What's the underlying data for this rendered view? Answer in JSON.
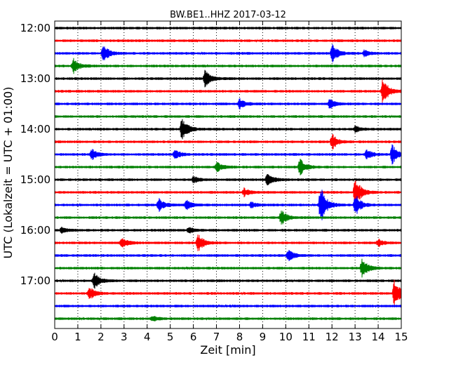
{
  "chart_data": {
    "type": "seismogram",
    "title": "BW.BE1..HHZ 2017-03-12",
    "xlabel": "Zeit  [min]",
    "ylabel": "UTC (Lokalzeit = UTC + 01:00)",
    "xlim": [
      0,
      15
    ],
    "x_ticks": [
      "0",
      "1",
      "2",
      "3",
      "4",
      "5",
      "6",
      "7",
      "8",
      "9",
      "10",
      "11",
      "12",
      "13",
      "14",
      "15"
    ],
    "y_ticks": [
      "12:00",
      "13:00",
      "14:00",
      "15:00",
      "16:00",
      "17:00"
    ],
    "grid": "vertical dotted lines at each minute",
    "colors": [
      "#000000",
      "#ff0000",
      "#0000ff",
      "#008000"
    ],
    "trace_interval_min": 15,
    "traces": [
      {
        "start": "12:00",
        "events": []
      },
      {
        "start": "12:15",
        "events": []
      },
      {
        "start": "12:30",
        "events": [
          {
            "t": 2.1,
            "amp": 0.9
          },
          {
            "t": 12.0,
            "amp": 1.0
          },
          {
            "t": 13.4,
            "amp": 0.35
          }
        ]
      },
      {
        "start": "12:45",
        "events": [
          {
            "t": 0.8,
            "amp": 0.8
          }
        ]
      },
      {
        "start": "13:00",
        "events": [
          {
            "t": 6.5,
            "amp": 0.9
          }
        ]
      },
      {
        "start": "13:15",
        "events": [
          {
            "t": 14.2,
            "amp": 1.5
          }
        ]
      },
      {
        "start": "13:30",
        "events": [
          {
            "t": 8.0,
            "amp": 0.5
          },
          {
            "t": 11.9,
            "amp": 0.5
          }
        ]
      },
      {
        "start": "13:45",
        "events": []
      },
      {
        "start": "14:00",
        "events": [
          {
            "t": 5.5,
            "amp": 1.3
          },
          {
            "t": 13.0,
            "amp": 0.3
          }
        ]
      },
      {
        "start": "14:15",
        "events": [
          {
            "t": 12.0,
            "amp": 0.8
          }
        ]
      },
      {
        "start": "14:30",
        "events": [
          {
            "t": 1.6,
            "amp": 0.6
          },
          {
            "t": 5.2,
            "amp": 0.5
          },
          {
            "t": 13.5,
            "amp": 0.5
          },
          {
            "t": 14.6,
            "amp": 1.0
          }
        ]
      },
      {
        "start": "14:45",
        "events": [
          {
            "t": 7.0,
            "amp": 0.6
          },
          {
            "t": 10.6,
            "amp": 0.9
          }
        ]
      },
      {
        "start": "15:00",
        "events": [
          {
            "t": 6.0,
            "amp": 0.35
          },
          {
            "t": 9.2,
            "amp": 0.8
          }
        ]
      },
      {
        "start": "15:15",
        "events": [
          {
            "t": 8.2,
            "amp": 0.4
          },
          {
            "t": 13.0,
            "amp": 1.6
          }
        ]
      },
      {
        "start": "15:30",
        "events": [
          {
            "t": 4.5,
            "amp": 0.7
          },
          {
            "t": 5.7,
            "amp": 0.5
          },
          {
            "t": 8.5,
            "amp": 0.3
          },
          {
            "t": 11.5,
            "amp": 2.2
          },
          {
            "t": 13.0,
            "amp": 1.2
          }
        ]
      },
      {
        "start": "15:45",
        "events": [
          {
            "t": 9.8,
            "amp": 0.8
          }
        ]
      },
      {
        "start": "16:00",
        "events": [
          {
            "t": 0.3,
            "amp": 0.3
          },
          {
            "t": 5.8,
            "amp": 0.3
          }
        ]
      },
      {
        "start": "16:15",
        "events": [
          {
            "t": 2.9,
            "amp": 0.6
          },
          {
            "t": 6.2,
            "amp": 1.0
          },
          {
            "t": 14.0,
            "amp": 0.4
          }
        ]
      },
      {
        "start": "16:30",
        "events": [
          {
            "t": 10.1,
            "amp": 0.7
          }
        ]
      },
      {
        "start": "16:45",
        "events": [
          {
            "t": 13.3,
            "amp": 1.0
          }
        ]
      },
      {
        "start": "17:00",
        "events": [
          {
            "t": 1.7,
            "amp": 0.9
          }
        ]
      },
      {
        "start": "17:15",
        "events": [
          {
            "t": 1.5,
            "amp": 0.7
          },
          {
            "t": 14.7,
            "amp": 1.6
          }
        ]
      },
      {
        "start": "17:30",
        "events": []
      },
      {
        "start": "17:45",
        "events": [
          {
            "t": 4.2,
            "amp": 0.3
          }
        ]
      }
    ]
  }
}
